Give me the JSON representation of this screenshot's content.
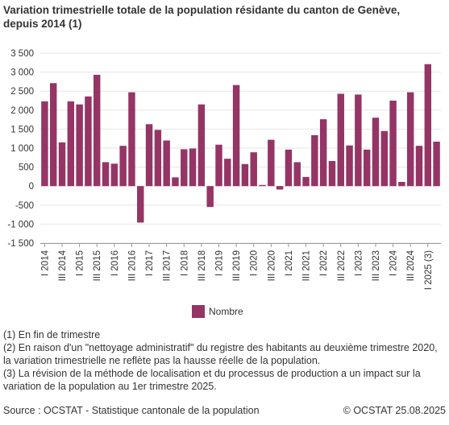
{
  "chart_title_line1": "Variation trimestrielle totale de la population résidante du canton de Genève,",
  "chart_title_line2": "depuis 2014 (1)",
  "notes": [
    "(1) En fin de trimestre",
    "(2) En raison d'un \"nettoyage administratif\" du registre des habitants au deuxième trimestre 2020, la variation trimestrielle ne reflète pas la hausse réelle de la population.",
    "(3) La révision de la méthode de localisation et du processus de production a un impact sur la variation de la population au 1er trimestre 2025."
  ],
  "source": "Source : OCSTAT - Statistique cantonale de la population",
  "copyright": "© OCSTAT 25.08.2025",
  "colors": {
    "bar": "#943565",
    "grid": "#e6e6e6",
    "axis": "#999999"
  },
  "chart_data": {
    "type": "bar",
    "title": "Variation trimestrielle totale de la population résidante du canton de Genève, depuis 2014 (1)",
    "ylim": [
      -1500,
      3500
    ],
    "yticks": [
      3500,
      3000,
      2500,
      2000,
      1500,
      1000,
      500,
      0,
      -500,
      -1000,
      -1500
    ],
    "ytick_labels": [
      "3 500",
      "3 000",
      "2 500",
      "2 000",
      "1 500",
      "1 000",
      "500",
      "0",
      "-500",
      "-1 000",
      "-1 500"
    ],
    "categories": [
      "I 2014",
      "II 2014",
      "III 2014",
      "IV 2014",
      "I 2015",
      "II 2015",
      "III 2015",
      "IV 2015",
      "I 2016",
      "II 2016",
      "III 2016",
      "IV 2016",
      "I 2017",
      "II 2017",
      "III 2017",
      "IV 2017",
      "I 2018",
      "II 2018",
      "III 2018",
      "IV 2018",
      "I 2019",
      "II 2019",
      "III 2019",
      "IV 2019",
      "I 2020",
      "II 2020",
      "III 2020",
      "IV 2020",
      "I 2021",
      "II 2021",
      "III 2021",
      "IV 2021",
      "I 2022",
      "II 2022",
      "III 2022",
      "IV 2022",
      "I 2023",
      "II 2023",
      "III 2023",
      "IV 2023",
      "I 2024",
      "II 2024",
      "III 2024",
      "IV 2024",
      "I 2025 (3)",
      "II 2025"
    ],
    "x_tick_labels": [
      "I 2014",
      "III 2014",
      "I 2015",
      "III 2015",
      "I 2016",
      "III 2016",
      "I 2017",
      "III 2017",
      "I 2018",
      "III 2018",
      "I 2019",
      "III 2019",
      "I 2020",
      "III 2020",
      "I 2021",
      "III 2021",
      "I 2022",
      "III 2022",
      "I 2023",
      "III 2023",
      "I 2024",
      "III 2024",
      "I 2025 (3)"
    ],
    "series": [
      {
        "name": "Nombre",
        "values": [
          2230,
          2710,
          1150,
          2230,
          2150,
          2360,
          2930,
          630,
          590,
          1060,
          2470,
          -960,
          1630,
          1480,
          1200,
          230,
          970,
          990,
          2150,
          -550,
          1090,
          720,
          2660,
          580,
          890,
          30,
          1220,
          -90,
          960,
          630,
          240,
          1340,
          1760,
          660,
          2430,
          1070,
          2410,
          960,
          1800,
          1450,
          2250,
          110,
          2470,
          1060,
          3210,
          1170
        ]
      }
    ],
    "legend": "bottom-center",
    "grid": true
  }
}
